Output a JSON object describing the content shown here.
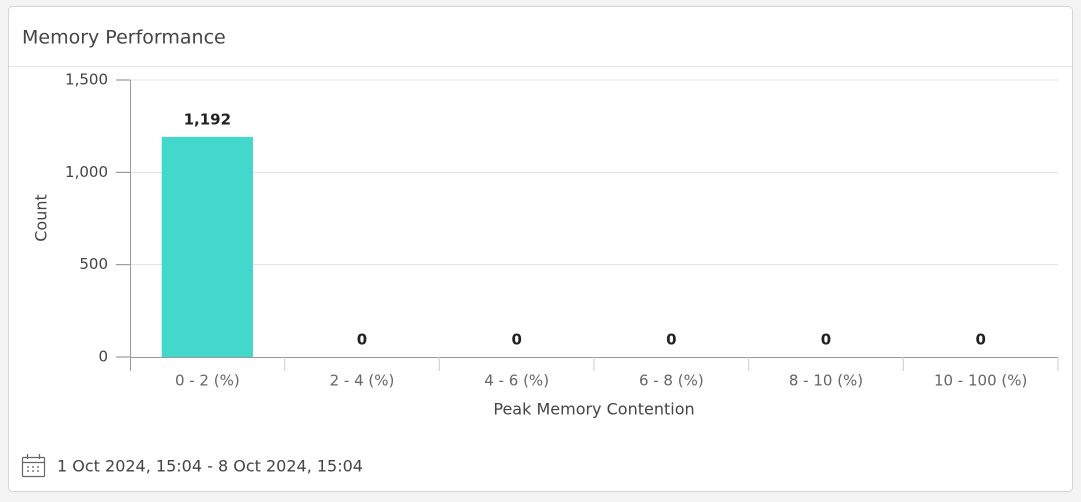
{
  "chart_data": {
    "type": "bar",
    "title": "Memory Performance",
    "x_label": "Peak Memory Contention",
    "y_label": "Count",
    "categories": [
      "0 - 2 (%)",
      "2 - 4 (%)",
      "4 - 6 (%)",
      "6 - 8 (%)",
      "8 - 10 (%)",
      "10 - 100 (%)"
    ],
    "values": [
      1192,
      0,
      0,
      0,
      0,
      0
    ],
    "value_labels": [
      "1,192",
      "0",
      "0",
      "0",
      "0",
      "0"
    ],
    "color": "#44d7cb",
    "ylim": [
      0,
      1500
    ],
    "yticks": [
      0,
      500,
      {
        "value": 1000,
        "label": "1,000"
      },
      {
        "value": 1500,
        "label": "1,500"
      }
    ],
    "grid": true
  },
  "footer": {
    "date_range": "1 Oct 2024, 15:04 - 8 Oct 2024, 15:04"
  }
}
